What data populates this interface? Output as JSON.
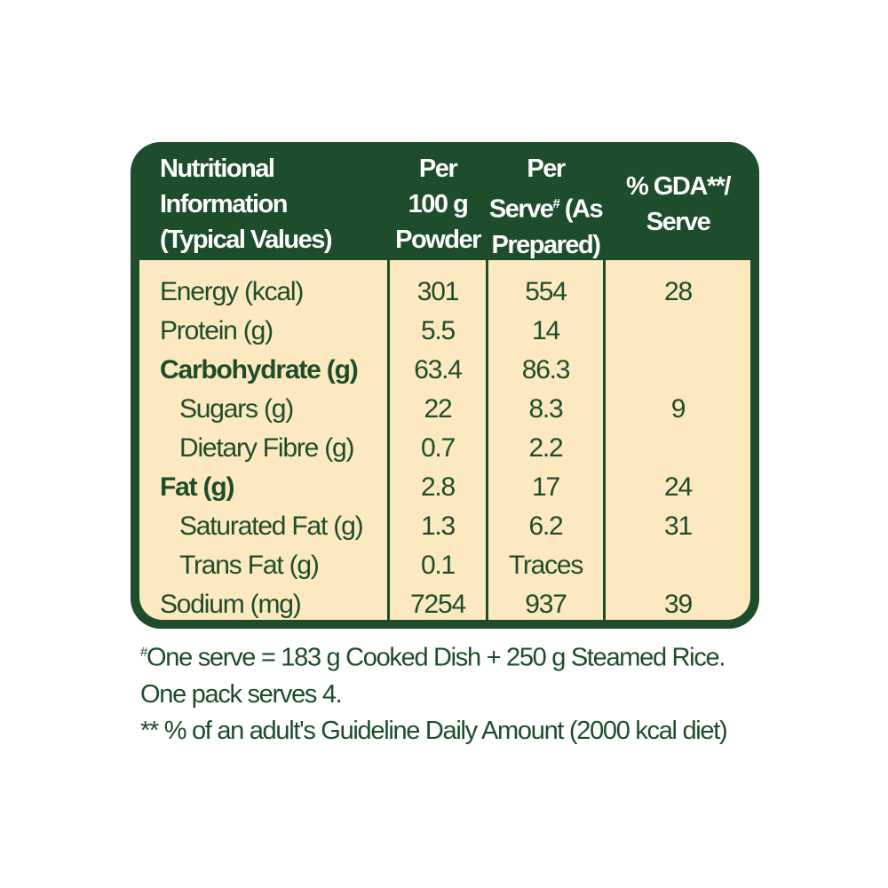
{
  "header": {
    "col1": [
      "Nutritional",
      "Information",
      "(Typical Values)"
    ],
    "col2": [
      "Per",
      "100 g",
      "Powder"
    ],
    "col3": [
      "Per",
      "Serve",
      "#",
      " (As",
      "Prepared)"
    ],
    "col4": [
      "% GDA**/",
      "Serve"
    ]
  },
  "rows": [
    {
      "label": "Energy (kcal)",
      "per100g": "301",
      "perServe": "554",
      "gda": "28",
      "bold": false,
      "indent": false
    },
    {
      "label": "Protein (g)",
      "per100g": "5.5",
      "perServe": "14",
      "gda": "",
      "bold": false,
      "indent": false
    },
    {
      "label": "Carbohydrate (g)",
      "per100g": "63.4",
      "perServe": "86.3",
      "gda": "",
      "bold": true,
      "indent": false
    },
    {
      "label": "Sugars (g)",
      "per100g": "22",
      "perServe": "8.3",
      "gda": "9",
      "bold": false,
      "indent": true
    },
    {
      "label": "Dietary Fibre (g)",
      "per100g": "0.7",
      "perServe": "2.2",
      "gda": "",
      "bold": false,
      "indent": true
    },
    {
      "label": "Fat (g)",
      "per100g": "2.8",
      "perServe": "17",
      "gda": "24",
      "bold": true,
      "indent": false
    },
    {
      "label": "Saturated Fat (g)",
      "per100g": "1.3",
      "perServe": "6.2",
      "gda": "31",
      "bold": false,
      "indent": true
    },
    {
      "label": "Trans Fat (g)",
      "per100g": "0.1",
      "perServe": "Traces",
      "gda": "",
      "bold": false,
      "indent": true
    },
    {
      "label": "Sodium (mg)",
      "per100g": "7254",
      "perServe": "937",
      "gda": "39",
      "bold": false,
      "indent": false
    }
  ],
  "footnotes": {
    "hash": "#",
    "line1": "One serve = 183 g Cooked Dish + 250 g Steamed Rice.",
    "line2": "One pack serves 4.",
    "line3": "** % of an adult's Guideline Daily Amount (2000 kcal diet)"
  },
  "colors": {
    "green": "#1e4d2b",
    "cream": "#fde9bf"
  }
}
